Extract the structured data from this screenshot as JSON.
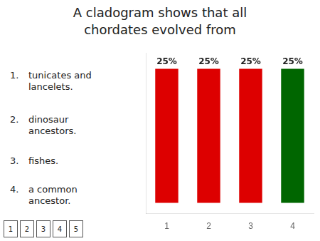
{
  "chart_data": {
    "type": "bar",
    "title": [
      "A cladogram shows that all",
      "chordates evolved from"
    ],
    "categories": [
      "1",
      "2",
      "3",
      "4"
    ],
    "values": [
      25,
      25,
      25,
      25
    ],
    "value_labels": [
      "25%",
      "25%",
      "25%",
      "25%"
    ],
    "data_labels": true,
    "colors": [
      "#dd0000",
      "#dd0000",
      "#dd0000",
      "#006600"
    ],
    "ylim": [
      -2,
      28
    ],
    "yticks": [],
    "tick_labels": "x",
    "grid": false,
    "annotations": [
      {
        "label": "1.",
        "text": "tunicates and\nlancelets."
      },
      {
        "label": "2.",
        "text": "dinosaur\nancestors."
      },
      {
        "label": "3.",
        "text": "fishes."
      },
      {
        "label": "4.",
        "text": "a common\nancestor."
      }
    ],
    "buttons": [
      "1",
      "2",
      "3",
      "4",
      "5"
    ]
  }
}
